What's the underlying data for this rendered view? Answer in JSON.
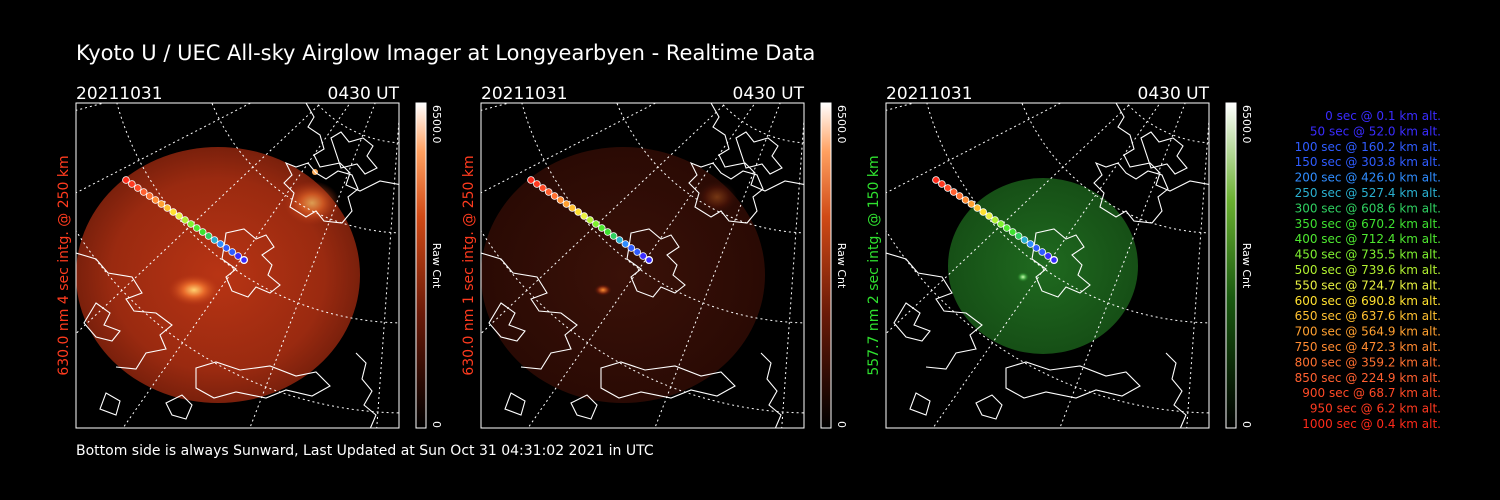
{
  "title": "Kyoto U / UEC All-sky Airglow Imager at Longyearbyen - Realtime Data",
  "footer": "Bottom side is always Sunward, Last Updated at Sun Oct 31 04:31:02 2021 in UTC",
  "colors": {
    "background": "#000000",
    "red_label": "#ff3b1e",
    "green_label": "#2fe02f",
    "coast": "#ffffff",
    "grid": "#ffffff"
  },
  "panels": [
    {
      "date": "20211031",
      "time": "0430 UT",
      "side_label": "630.0 nm 4 sec intg. @ 250 km",
      "colorbar_max": "6500.0",
      "colorbar_min": "0",
      "colorbar_unit": "Raw Cnt",
      "channel": "red",
      "brightness": "high"
    },
    {
      "date": "20211031",
      "time": "0430 UT",
      "side_label": "630.0 nm 1 sec intg. @ 250 km",
      "colorbar_max": "6500.0",
      "colorbar_min": "0",
      "colorbar_unit": "Raw Cnt",
      "channel": "red",
      "brightness": "low"
    },
    {
      "date": "20211031",
      "time": "0430 UT",
      "side_label": "557.7 nm 2 sec intg. @ 150 km",
      "colorbar_max": "6500.0",
      "colorbar_min": "0",
      "colorbar_unit": "Raw Cnt",
      "channel": "green",
      "brightness": "medium"
    }
  ],
  "legend": [
    {
      "text": "0 sec @    0.1 km alt.",
      "color": "#3a2cff"
    },
    {
      "text": "50 sec @   52.0 km alt.",
      "color": "#3a2cff"
    },
    {
      "text": "100 sec @  160.2 km alt.",
      "color": "#2f5cff"
    },
    {
      "text": "150 sec @  303.8 km alt.",
      "color": "#2f5cff"
    },
    {
      "text": "200 sec @  426.0 km alt.",
      "color": "#2f8cff"
    },
    {
      "text": "250 sec @  527.4 km alt.",
      "color": "#2ab0d0"
    },
    {
      "text": "300 sec @  608.6 km alt.",
      "color": "#2fd060"
    },
    {
      "text": "350 sec @  670.2 km alt.",
      "color": "#3ee030"
    },
    {
      "text": "400 sec @  712.4 km alt.",
      "color": "#4ee830"
    },
    {
      "text": "450 sec @  735.5 km alt.",
      "color": "#7ef030"
    },
    {
      "text": "500 sec @  739.6 km alt.",
      "color": "#b0f030"
    },
    {
      "text": "550 sec @  724.7 km alt.",
      "color": "#e8f040"
    },
    {
      "text": "600 sec @  690.8 km alt.",
      "color": "#ffe030"
    },
    {
      "text": "650 sec @  637.6 km alt.",
      "color": "#ffc030"
    },
    {
      "text": "700 sec @  564.9 km alt.",
      "color": "#ffa030"
    },
    {
      "text": "750 sec @  472.3 km alt.",
      "color": "#ff8a30"
    },
    {
      "text": "800 sec @  359.2 km alt.",
      "color": "#ff7030"
    },
    {
      "text": "850 sec @  224.9 km alt.",
      "color": "#ff6030"
    },
    {
      "text": "900 sec @   68.7 km alt.",
      "color": "#ff4a26"
    },
    {
      "text": "950 sec @    6.2 km alt.",
      "color": "#ff3a20"
    },
    {
      "text": "1000 sec @    0.4 km alt.",
      "color": "#ff2a1a"
    }
  ]
}
